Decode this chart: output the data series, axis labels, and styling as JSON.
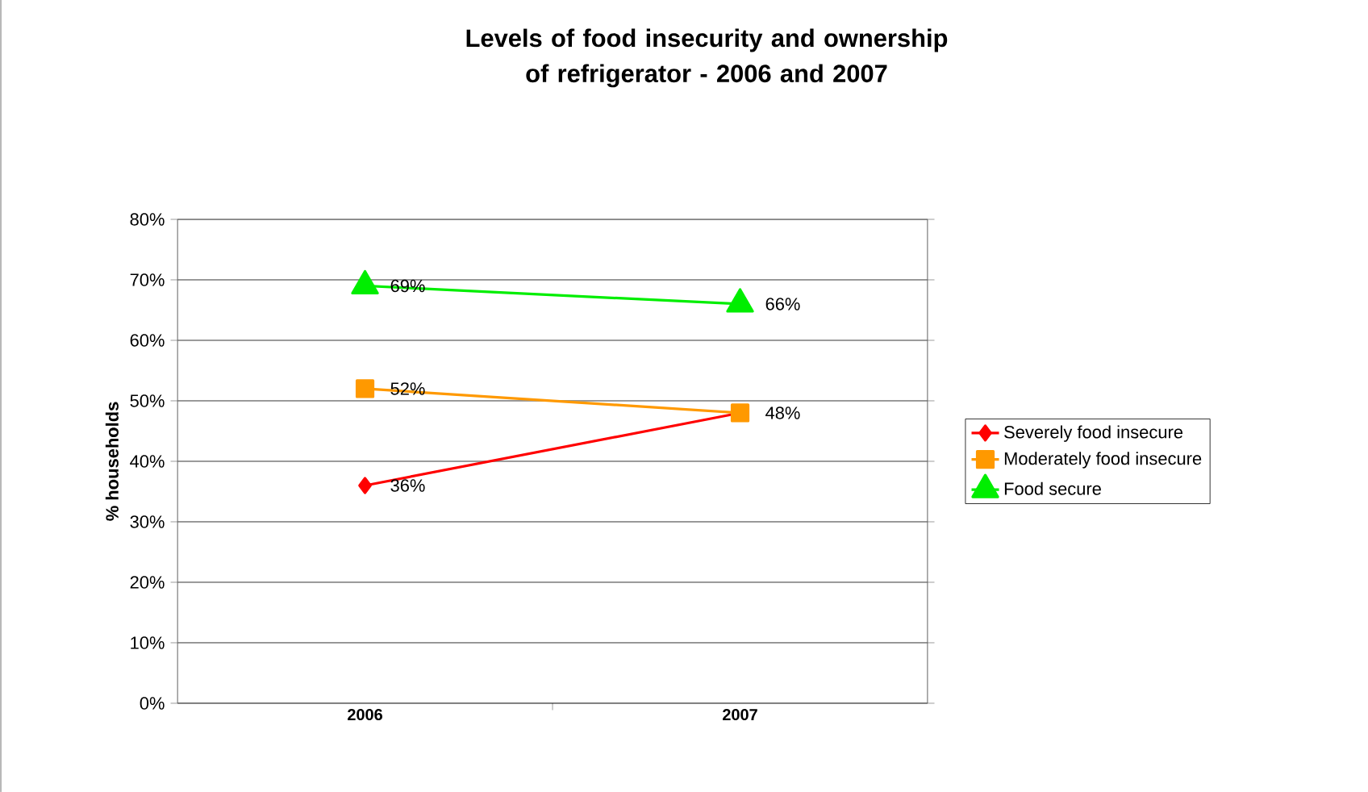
{
  "chart_data": {
    "type": "line",
    "title": "Levels of food insecurity and ownership of refrigerator - 2006 and 2007",
    "ylabel": "% households",
    "categories": [
      "2006",
      "2007"
    ],
    "series": [
      {
        "name": "Severely food insecure",
        "color": "#ff0000",
        "marker": "diamond",
        "values": [
          36,
          48
        ],
        "value_labels": [
          "36%",
          "48%"
        ]
      },
      {
        "name": "Moderately food insecure",
        "color": "#ff9900",
        "marker": "square",
        "values": [
          52,
          48
        ],
        "value_labels": [
          "52%",
          null
        ]
      },
      {
        "name": "Food secure",
        "color": "#00ee00",
        "marker": "triangle",
        "values": [
          69,
          66
        ],
        "value_labels": [
          "69%",
          "66%"
        ]
      }
    ],
    "ylim": [
      0,
      80
    ],
    "yticks": [
      {
        "value": 0,
        "label": "0%"
      },
      {
        "value": 10,
        "label": "10%"
      },
      {
        "value": 20,
        "label": "20%"
      },
      {
        "value": 30,
        "label": "30%"
      },
      {
        "value": 40,
        "label": "40%"
      },
      {
        "value": 50,
        "label": "50%"
      },
      {
        "value": 60,
        "label": "60%"
      },
      {
        "value": 70,
        "label": "70%"
      },
      {
        "value": 80,
        "label": "80%"
      }
    ],
    "grid": "y",
    "legend": "right",
    "line_style": "solid"
  }
}
